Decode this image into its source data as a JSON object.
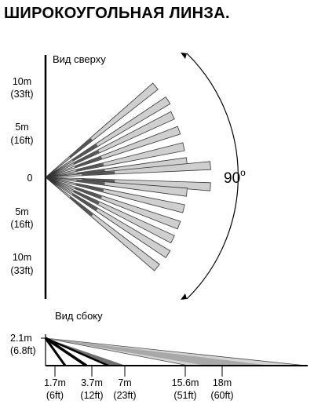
{
  "title": "ШИРОКОУГОЛЬНАЯ ЛИНЗА.",
  "top_view": {
    "label": "Вид сверху",
    "angle_value": "90",
    "angle_unit": "o",
    "axis_labels": [
      {
        "m": "10m",
        "ft": "(33ft)"
      },
      {
        "m": "5m",
        "ft": "(16ft)"
      },
      {
        "m": "0",
        "ft": ""
      },
      {
        "m": "5m",
        "ft": "(16ft)"
      },
      {
        "m": "10m",
        "ft": "(33ft)"
      }
    ]
  },
  "side_view": {
    "label": "Вид сбоку",
    "height_m": "2.1m",
    "height_ft": "(6.8ft)",
    "distances": [
      {
        "m": "1.7m",
        "ft": "(6ft)"
      },
      {
        "m": "3.7m",
        "ft": "(12ft)"
      },
      {
        "m": "7m",
        "ft": "(23ft)"
      },
      {
        "m": "15.6m",
        "ft": "(51ft)"
      },
      {
        "m": "18m",
        "ft": "(60ft)"
      }
    ]
  }
}
